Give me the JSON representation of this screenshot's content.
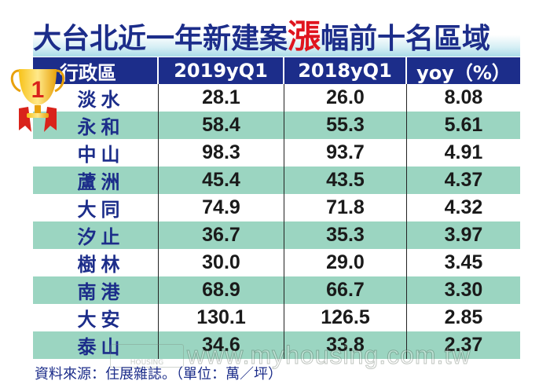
{
  "title": {
    "prefix": "大台北近一年新建案",
    "highlight": "漲",
    "suffix": "幅前十名區域"
  },
  "table": {
    "headers": [
      "行政區",
      "2019yQ1",
      "2018yQ1",
      "yoy（%）"
    ],
    "rows": [
      {
        "district": "淡水",
        "q1_2019": "28.1",
        "q1_2018": "26.0",
        "yoy": "8.08"
      },
      {
        "district": "永和",
        "q1_2019": "58.4",
        "q1_2018": "55.3",
        "yoy": "5.61"
      },
      {
        "district": "中山",
        "q1_2019": "98.3",
        "q1_2018": "93.7",
        "yoy": "4.91"
      },
      {
        "district": "蘆洲",
        "q1_2019": "45.4",
        "q1_2018": "43.5",
        "yoy": "4.37"
      },
      {
        "district": "大同",
        "q1_2019": "74.9",
        "q1_2018": "71.8",
        "yoy": "4.32"
      },
      {
        "district": "汐止",
        "q1_2019": "36.7",
        "q1_2018": "35.3",
        "yoy": "3.97"
      },
      {
        "district": "樹林",
        "q1_2019": "30.0",
        "q1_2018": "29.0",
        "yoy": "3.45"
      },
      {
        "district": "南港",
        "q1_2019": "68.9",
        "q1_2018": "66.7",
        "yoy": "3.30"
      },
      {
        "district": "大安",
        "q1_2019": "130.1",
        "q1_2018": "126.5",
        "yoy": "2.85"
      },
      {
        "district": "泰山",
        "q1_2019": "34.6",
        "q1_2018": "33.8",
        "yoy": "2.37"
      }
    ]
  },
  "trophy": {
    "rank": "1",
    "icon": "trophy-icon"
  },
  "source": "資料來源：住展雜誌。（單位：萬／坪）",
  "watermark": {
    "logo_text": "HOUSING",
    "url": "www.myhousing.com.tw"
  },
  "colors": {
    "header_bg": "#1c2d8a",
    "title_text": "#1c2d8a",
    "highlight": "#e0141e",
    "alt_row": "#9bd5c1"
  },
  "chart_data": {
    "type": "table",
    "title": "大台北近一年新建案漲幅前十名區域",
    "columns": [
      "行政區",
      "2019yQ1",
      "2018yQ1",
      "yoy（%）"
    ],
    "unit": "萬／坪",
    "rows": [
      [
        "淡水",
        28.1,
        26.0,
        8.08
      ],
      [
        "永和",
        58.4,
        55.3,
        5.61
      ],
      [
        "中山",
        98.3,
        93.7,
        4.91
      ],
      [
        "蘆洲",
        45.4,
        43.5,
        4.37
      ],
      [
        "大同",
        74.9,
        71.8,
        4.32
      ],
      [
        "汐止",
        36.7,
        35.3,
        3.97
      ],
      [
        "樹林",
        30.0,
        29.0,
        3.45
      ],
      [
        "南港",
        68.9,
        66.7,
        3.3
      ],
      [
        "大安",
        130.1,
        126.5,
        2.85
      ],
      [
        "泰山",
        34.6,
        33.8,
        2.37
      ]
    ],
    "source": "資料來源：住展雜誌。（單位：萬／坪）"
  }
}
